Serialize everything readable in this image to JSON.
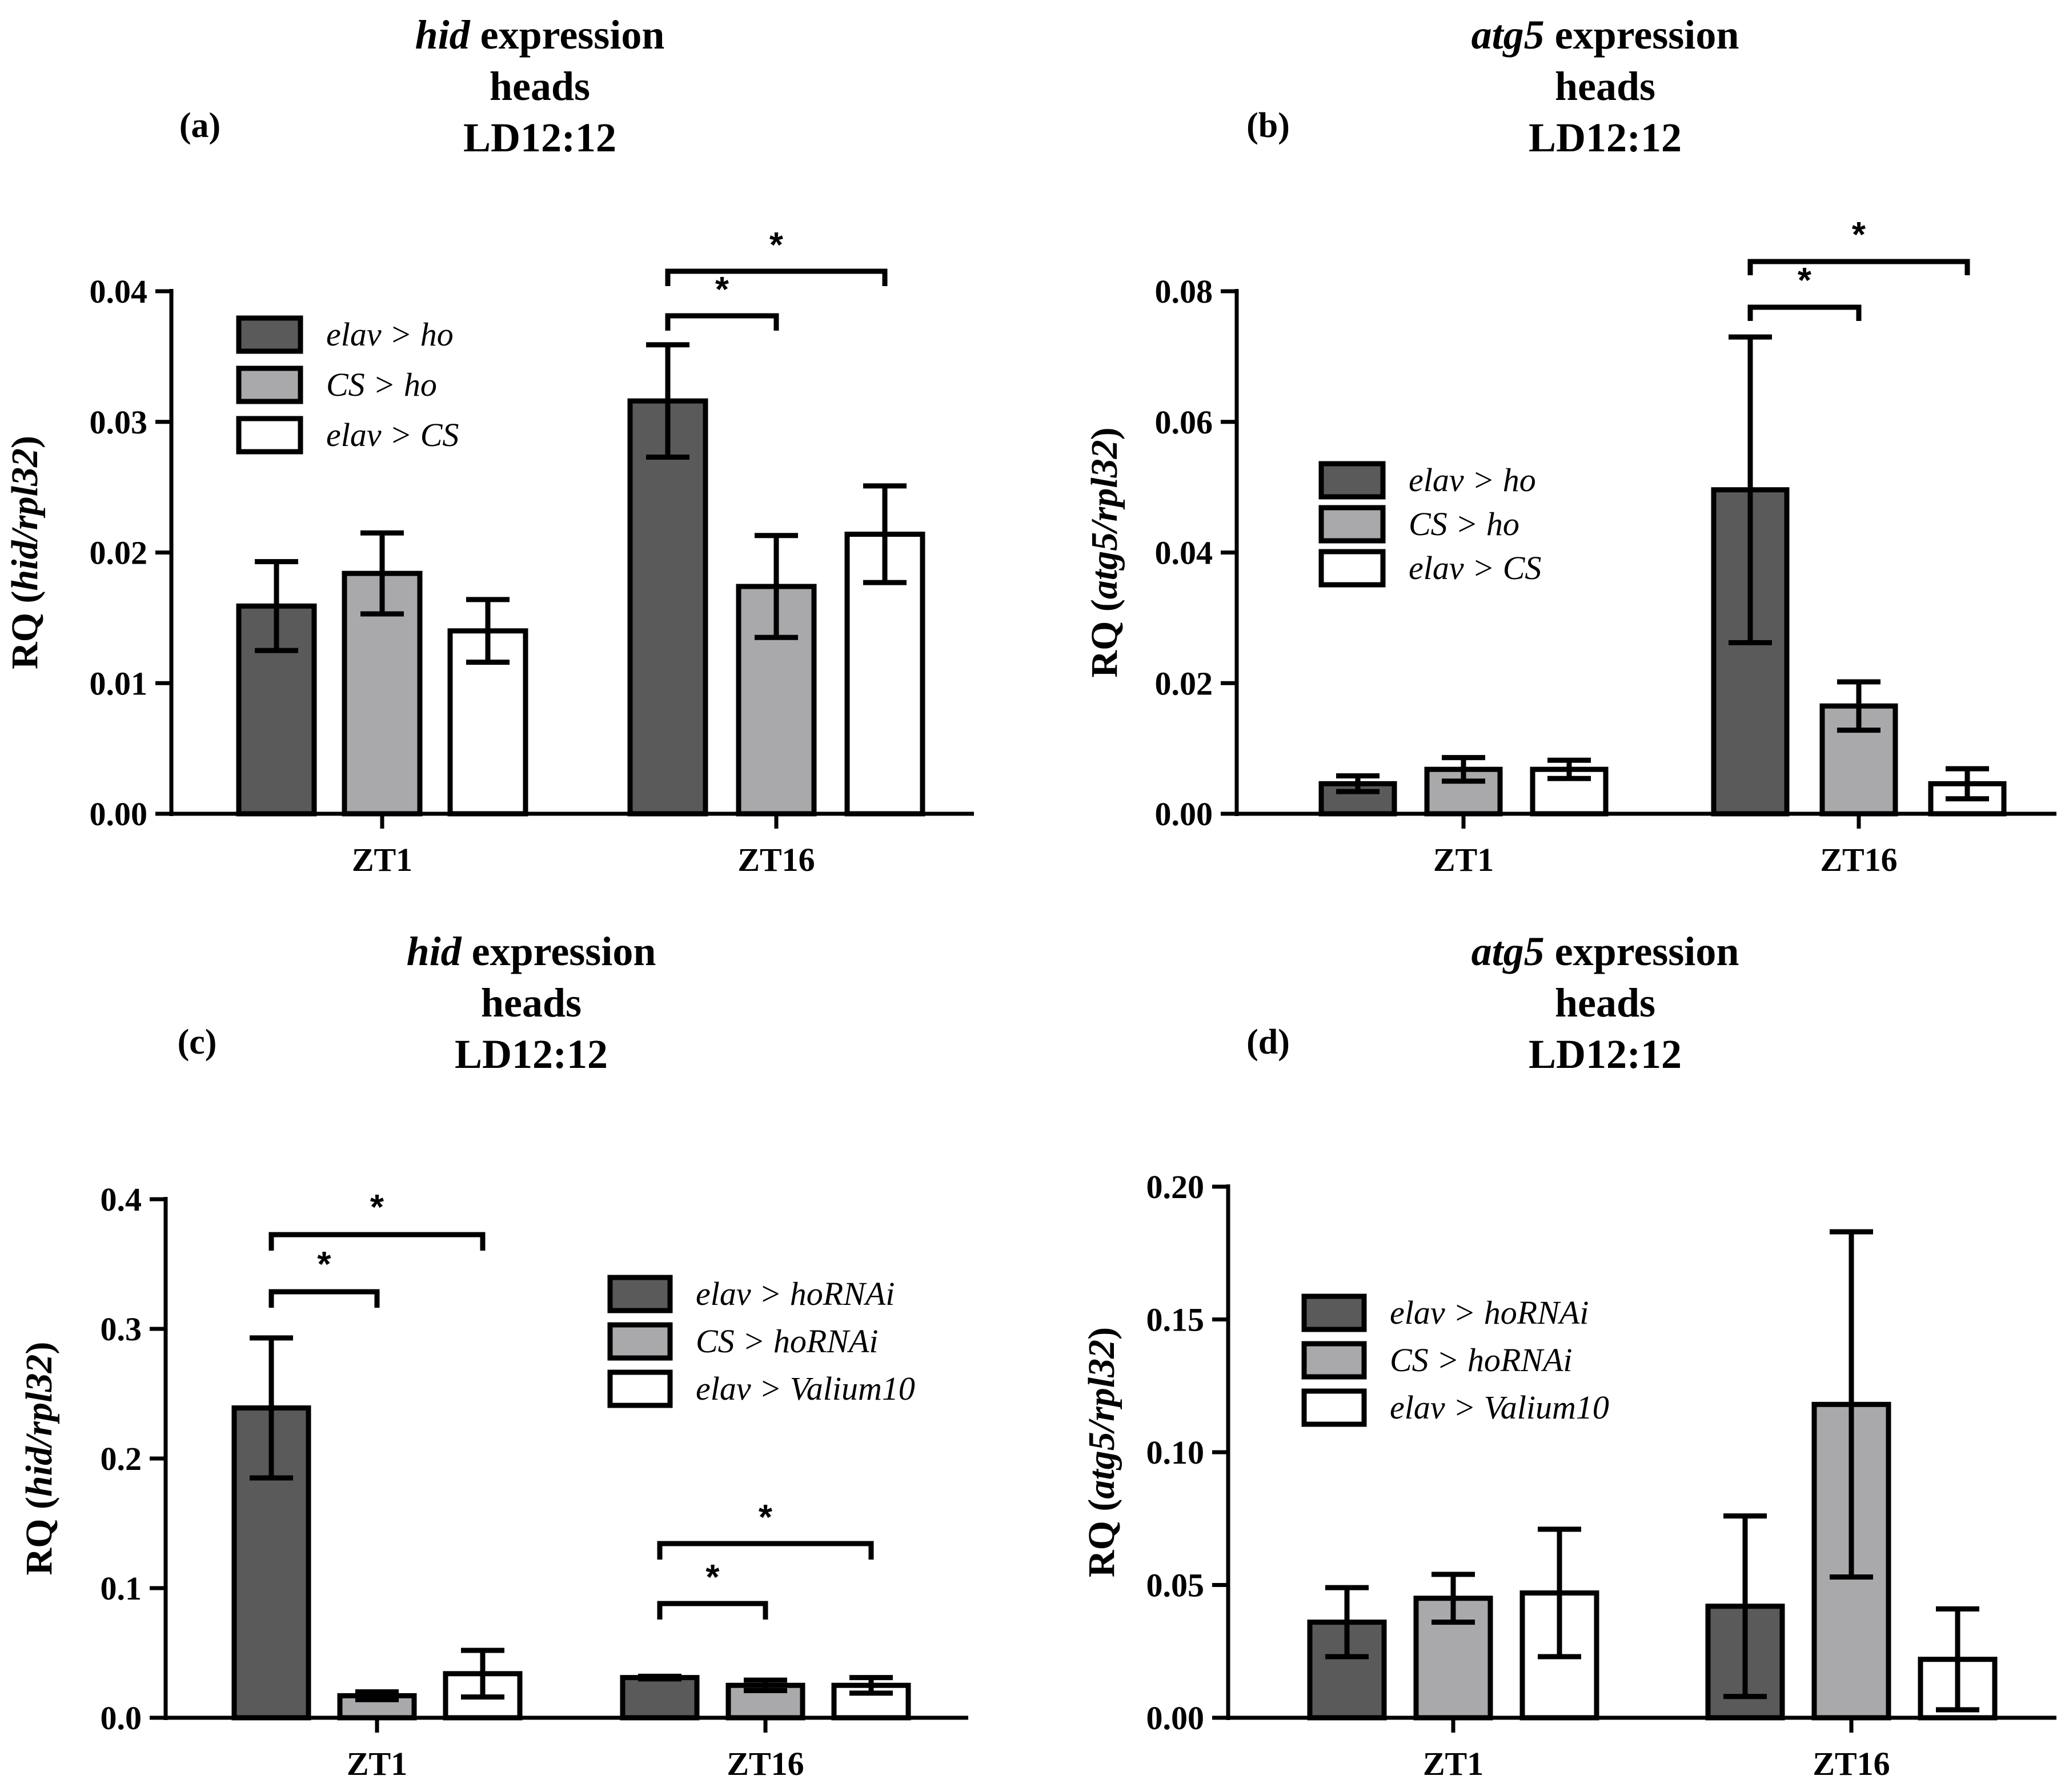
{
  "colors": {
    "elav_ho": "#5a5a5a",
    "cs_ho": "#a9a9ab",
    "elav_cs": "#ffffff",
    "stroke": "#000000"
  },
  "chart_data": [
    {
      "type": "bar",
      "panel_label": "(a)",
      "title_italic": "hid",
      "title_rest": "expression",
      "title_line2": "heads",
      "title_line3": "LD12:12",
      "ylabel_prefix": "RQ (",
      "ylabel_italic": "hid/rpl32",
      "ylabel_suffix": ")",
      "ylim": [
        0,
        0.04
      ],
      "yticks": [
        "0.00",
        "0.01",
        "0.02",
        "0.03",
        "0.04"
      ],
      "ytick_values": [
        0,
        0.01,
        0.02,
        0.03,
        0.04
      ],
      "categories": [
        "ZT1",
        "ZT16"
      ],
      "legend": [
        "elav > ho",
        "CS > ho",
        "elav > CS"
      ],
      "series": [
        {
          "name": "elav > ho",
          "values": [
            0.0159,
            0.0316
          ],
          "errors": [
            0.0034,
            0.0043
          ]
        },
        {
          "name": "CS > ho",
          "values": [
            0.0184,
            0.0174
          ],
          "errors": [
            0.0031,
            0.0039
          ]
        },
        {
          "name": "elav > CS",
          "values": [
            0.014,
            0.0214
          ],
          "errors": [
            0.0024,
            0.0037
          ]
        }
      ],
      "significance": [
        {
          "category": 1,
          "from": 0,
          "to": 1,
          "label": "*"
        },
        {
          "category": 1,
          "from": 0,
          "to": 2,
          "label": "*"
        }
      ]
    },
    {
      "type": "bar",
      "panel_label": "(b)",
      "title_italic": "atg5",
      "title_rest": "expression",
      "title_line2": "heads",
      "title_line3": "LD12:12",
      "ylabel_prefix": "RQ (",
      "ylabel_italic": "atg5/rpl32",
      "ylabel_suffix": ")",
      "ylim": [
        0,
        0.08
      ],
      "yticks": [
        "0.00",
        "0.02",
        "0.04",
        "0.06",
        "0.08"
      ],
      "ytick_values": [
        0,
        0.02,
        0.04,
        0.06,
        0.08
      ],
      "categories": [
        "ZT1",
        "ZT16"
      ],
      "legend": [
        "elav > ho",
        "CS > ho",
        "elav > CS"
      ],
      "series": [
        {
          "name": "elav > ho",
          "values": [
            0.0046,
            0.0496
          ],
          "errors": [
            0.0012,
            0.0234
          ]
        },
        {
          "name": "CS > ho",
          "values": [
            0.0068,
            0.0165
          ],
          "errors": [
            0.0018,
            0.0037
          ]
        },
        {
          "name": "elav > CS",
          "values": [
            0.0068,
            0.0046
          ],
          "errors": [
            0.0014,
            0.0023
          ]
        }
      ],
      "significance": [
        {
          "category": 1,
          "from": 0,
          "to": 1,
          "label": "*"
        },
        {
          "category": 1,
          "from": 0,
          "to": 2,
          "label": "*"
        }
      ]
    },
    {
      "type": "bar",
      "panel_label": "(c)",
      "title_italic": "hid",
      "title_rest": "expression",
      "title_line2": "heads",
      "title_line3": "LD12:12",
      "ylabel_prefix": "RQ (",
      "ylabel_italic": "hid/rpl32",
      "ylabel_suffix": ")",
      "ylim": [
        0,
        0.4
      ],
      "yticks": [
        "0.0",
        "0.1",
        "0.2",
        "0.3",
        "0.4"
      ],
      "ytick_values": [
        0,
        0.1,
        0.2,
        0.3,
        0.4
      ],
      "categories": [
        "ZT1",
        "ZT16"
      ],
      "legend": [
        "elav > hoRNAi",
        "CS > hoRNAi",
        "elav > Valium10"
      ],
      "series": [
        {
          "name": "elav > hoRNAi",
          "values": [
            0.239,
            0.031
          ],
          "errors": [
            0.054,
            0.001
          ]
        },
        {
          "name": "CS > hoRNAi",
          "values": [
            0.017,
            0.025
          ],
          "errors": [
            0.003,
            0.004
          ]
        },
        {
          "name": "elav > Valium10",
          "values": [
            0.034,
            0.025
          ],
          "errors": [
            0.018,
            0.006
          ]
        }
      ],
      "significance": [
        {
          "category": 0,
          "from": 0,
          "to": 1,
          "label": "*"
        },
        {
          "category": 0,
          "from": 0,
          "to": 2,
          "label": "*"
        },
        {
          "category": 1,
          "from": 0,
          "to": 1,
          "label": "*"
        },
        {
          "category": 1,
          "from": 0,
          "to": 2,
          "label": "*"
        }
      ]
    },
    {
      "type": "bar",
      "panel_label": "(d)",
      "title_italic": "atg5",
      "title_rest": "expression",
      "title_line2": "heads",
      "title_line3": "LD12:12",
      "ylabel_prefix": "RQ (",
      "ylabel_italic": "atg5/rpl32",
      "ylabel_suffix": ")",
      "ylim": [
        0,
        0.2
      ],
      "yticks": [
        "0.00",
        "0.05",
        "0.10",
        "0.15",
        "0.20"
      ],
      "ytick_values": [
        0,
        0.05,
        0.1,
        0.15,
        0.2
      ],
      "categories": [
        "ZT1",
        "ZT16"
      ],
      "legend": [
        "elav > hoRNAi",
        "CS > hoRNAi",
        "elav > Valium10"
      ],
      "series": [
        {
          "name": "elav > hoRNAi",
          "values": [
            0.036,
            0.042
          ],
          "errors": [
            0.013,
            0.034
          ]
        },
        {
          "name": "CS > hoRNAi",
          "values": [
            0.045,
            0.118
          ],
          "errors": [
            0.009,
            0.065
          ]
        },
        {
          "name": "elav > Valium10",
          "values": [
            0.047,
            0.022
          ],
          "errors": [
            0.024,
            0.019
          ]
        }
      ],
      "significance": []
    }
  ]
}
